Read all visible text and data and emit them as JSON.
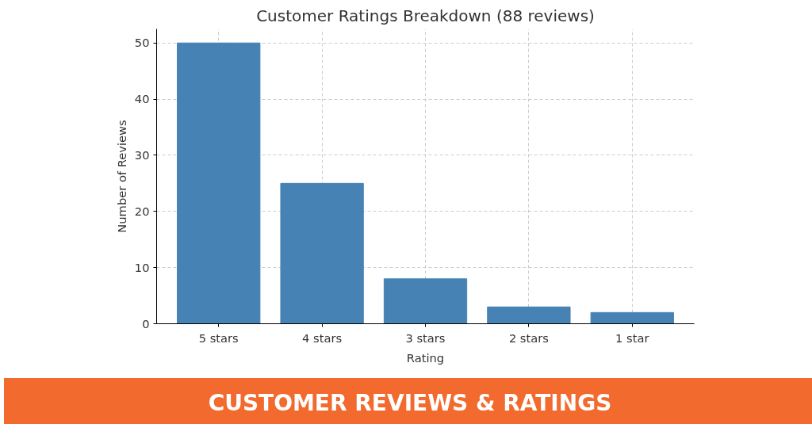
{
  "chart_data": {
    "type": "bar",
    "title": "Customer Ratings Breakdown (88 reviews)",
    "xlabel": "Rating",
    "ylabel": "Number of Reviews",
    "categories": [
      "5 stars",
      "4 stars",
      "3 stars",
      "2 stars",
      "1 star"
    ],
    "values": [
      50,
      25,
      8,
      3,
      2
    ],
    "color": "#4682b4",
    "ylim": [
      0,
      52.5
    ],
    "yticks": [
      0,
      10,
      20,
      30,
      40,
      50
    ],
    "grid": true,
    "annotations": [
      "CUSTOMER REVIEWS & RATINGS"
    ]
  }
}
